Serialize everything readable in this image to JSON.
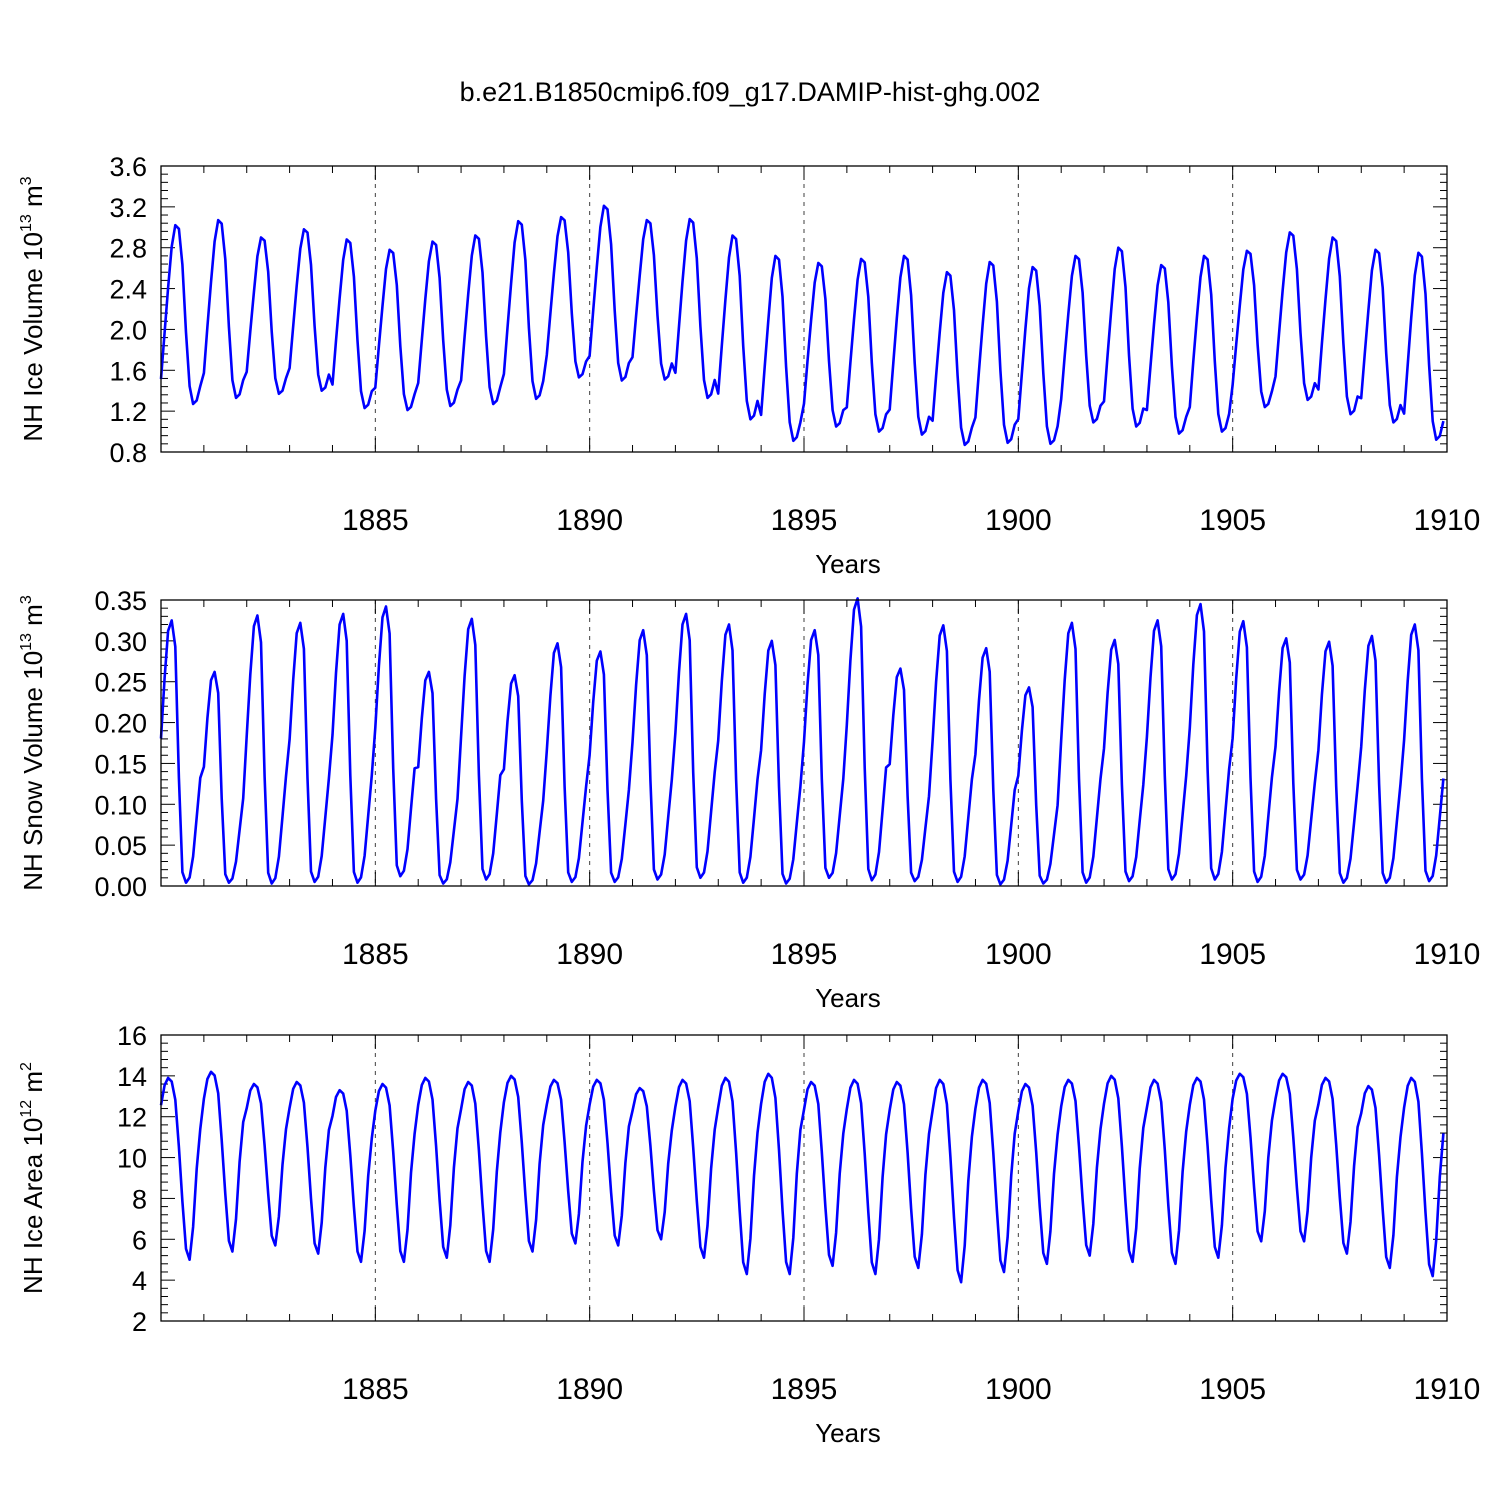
{
  "chart_data": {
    "title": "b.e21.B1850cmip6.f09_g17.DAMIP-hist-ghg.002",
    "panels": [
      {
        "type": "line",
        "ylabel": "NH Ice Volume 10",
        "ylabel_exp": "13",
        "ylabel_unit": " m",
        "ylabel_unit_exp": "3",
        "xlabel": "Years",
        "xlim": [
          1880.0,
          1910.0
        ],
        "ylim": [
          0.8,
          3.6
        ],
        "yticks": [
          "0.8",
          "1.2",
          "1.6",
          "2.0",
          "2.4",
          "2.8",
          "3.2",
          "3.6"
        ],
        "xticks": [
          "1885",
          "1890",
          "1895",
          "1900",
          "1905",
          "1910"
        ],
        "grid_x": [
          1885,
          1890,
          1895,
          1900,
          1905
        ],
        "series": {
          "name": "NH Ice Volume",
          "start_year": 1880.0,
          "month_step": 0.08333,
          "seasonal": [
            0.14,
            0.4,
            0.65,
            0.88,
            1.0,
            0.98,
            0.78,
            0.4,
            0.1,
            0.0,
            0.02,
            0.1
          ],
          "annual_max": [
            3.02,
            3.07,
            2.9,
            2.98,
            2.88,
            2.78,
            2.86,
            2.92,
            3.06,
            3.1,
            3.21,
            3.07,
            3.08,
            2.92,
            2.72,
            2.65,
            2.69,
            2.72,
            2.56,
            2.66,
            2.61,
            2.72,
            2.8,
            2.63,
            2.72,
            2.77,
            2.95,
            2.9,
            2.78,
            2.75
          ],
          "annual_min": [
            1.27,
            1.33,
            1.37,
            1.4,
            1.23,
            1.21,
            1.25,
            1.27,
            1.32,
            1.53,
            1.5,
            1.51,
            1.33,
            1.12,
            0.91,
            1.05,
            1.0,
            0.97,
            0.87,
            0.89,
            0.88,
            1.09,
            1.05,
            0.98,
            1.0,
            1.24,
            1.31,
            1.17,
            1.09,
            0.92
          ]
        }
      },
      {
        "type": "line",
        "ylabel": "NH Snow Volume 10",
        "ylabel_exp": "13",
        "ylabel_unit": " m",
        "ylabel_unit_exp": "3",
        "xlabel": "Years",
        "xlim": [
          1880.0,
          1910.0
        ],
        "ylim": [
          0.0,
          0.35
        ],
        "yticks": [
          "0.00",
          "0.05",
          "0.10",
          "0.15",
          "0.20",
          "0.25",
          "0.30",
          "0.35"
        ],
        "xticks": [
          "1885",
          "1890",
          "1895",
          "1900",
          "1905",
          "1910"
        ],
        "grid_x": [
          1885,
          1890,
          1895,
          1900,
          1905
        ],
        "series": {
          "name": "NH Snow Volume",
          "start_year": 1880.0,
          "month_step": 0.08333,
          "seasonal": [
            0.55,
            0.78,
            0.96,
            1.0,
            0.9,
            0.4,
            0.04,
            0.0,
            0.02,
            0.1,
            0.25,
            0.4
          ],
          "annual_max": [
            0.325,
            0.262,
            0.331,
            0.322,
            0.333,
            0.342,
            0.262,
            0.327,
            0.258,
            0.297,
            0.287,
            0.313,
            0.333,
            0.32,
            0.3,
            0.313,
            0.352,
            0.266,
            0.319,
            0.291,
            0.243,
            0.322,
            0.301,
            0.325,
            0.345,
            0.324,
            0.303,
            0.299,
            0.306,
            0.32
          ],
          "annual_min": [
            0.004,
            0.004,
            0.003,
            0.005,
            0.004,
            0.012,
            0.003,
            0.008,
            0.002,
            0.005,
            0.005,
            0.008,
            0.01,
            0.004,
            0.003,
            0.01,
            0.007,
            0.006,
            0.005,
            0.002,
            0.003,
            0.004,
            0.006,
            0.008,
            0.008,
            0.005,
            0.008,
            0.004,
            0.004,
            0.006
          ]
        }
      },
      {
        "type": "line",
        "ylabel": "NH Ice Area 10",
        "ylabel_exp": "12",
        "ylabel_unit": " m",
        "ylabel_unit_exp": "2",
        "xlabel": "Years",
        "xlim": [
          1880.0,
          1910.0
        ],
        "ylim": [
          2,
          16
        ],
        "yticks": [
          "2",
          "4",
          "6",
          "8",
          "10",
          "12",
          "14",
          "16"
        ],
        "xticks": [
          "1885",
          "1890",
          "1895",
          "1900",
          "1905",
          "1910"
        ],
        "grid_x": [
          1885,
          1890,
          1895,
          1900,
          1905
        ],
        "series": {
          "name": "NH Ice Area",
          "start_year": 1880.0,
          "month_step": 0.08333,
          "seasonal": [
            0.85,
            0.96,
            1.0,
            0.98,
            0.88,
            0.62,
            0.32,
            0.06,
            0.0,
            0.18,
            0.5,
            0.72
          ],
          "annual_max": [
            13.9,
            14.2,
            13.6,
            13.7,
            13.3,
            13.6,
            13.9,
            13.7,
            14.0,
            13.8,
            13.8,
            13.4,
            13.8,
            13.9,
            14.1,
            13.7,
            13.8,
            13.7,
            13.8,
            13.8,
            13.6,
            13.8,
            14.0,
            13.8,
            13.9,
            14.1,
            14.1,
            13.9,
            13.5,
            13.9
          ],
          "annual_min": [
            5.0,
            5.4,
            5.7,
            5.3,
            4.9,
            4.9,
            5.1,
            4.9,
            5.4,
            5.8,
            5.7,
            6.0,
            5.1,
            4.3,
            4.3,
            4.7,
            4.3,
            4.6,
            3.9,
            4.4,
            4.8,
            5.2,
            4.9,
            4.8,
            5.1,
            5.9,
            5.9,
            5.3,
            4.6,
            4.2
          ]
        }
      }
    ]
  }
}
